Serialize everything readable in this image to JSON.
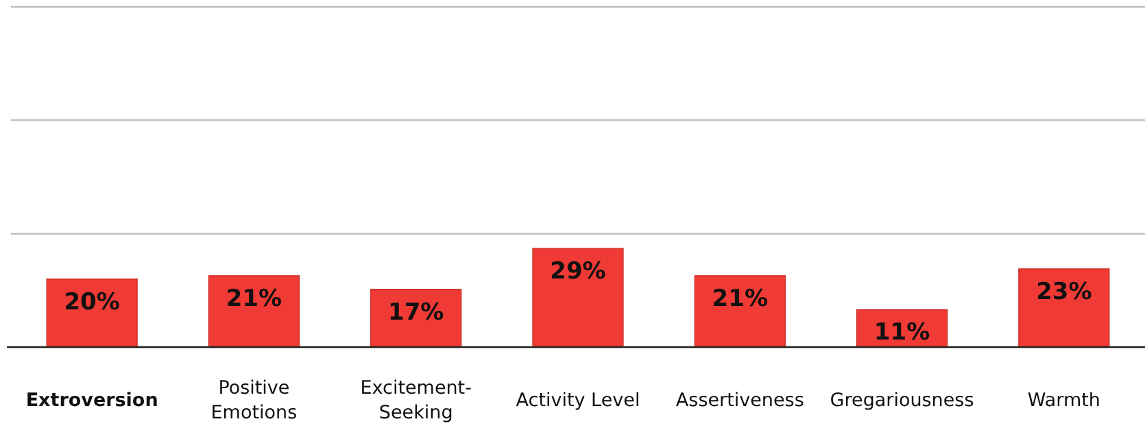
{
  "chart_data": {
    "type": "bar",
    "categories": [
      "Extroversion",
      "Positive Emotions",
      "Excitement-Seeking",
      "Activity Level",
      "Assertiveness",
      "Gregariousness",
      "Warmth"
    ],
    "values": [
      20,
      21,
      17,
      29,
      21,
      11,
      23
    ],
    "value_labels": [
      "20%",
      "21%",
      "17%",
      "29%",
      "21%",
      "11%",
      "23%"
    ],
    "color": "#f03a35",
    "ylim": [
      0,
      100
    ],
    "yticks": [
      {
        "value": 0,
        "label": null
      },
      {
        "value": 33.3,
        "label": null
      },
      {
        "value": 66.7,
        "label": null
      },
      {
        "value": 100,
        "label": null
      }
    ],
    "grid": "y",
    "tick_labels": "x"
  }
}
